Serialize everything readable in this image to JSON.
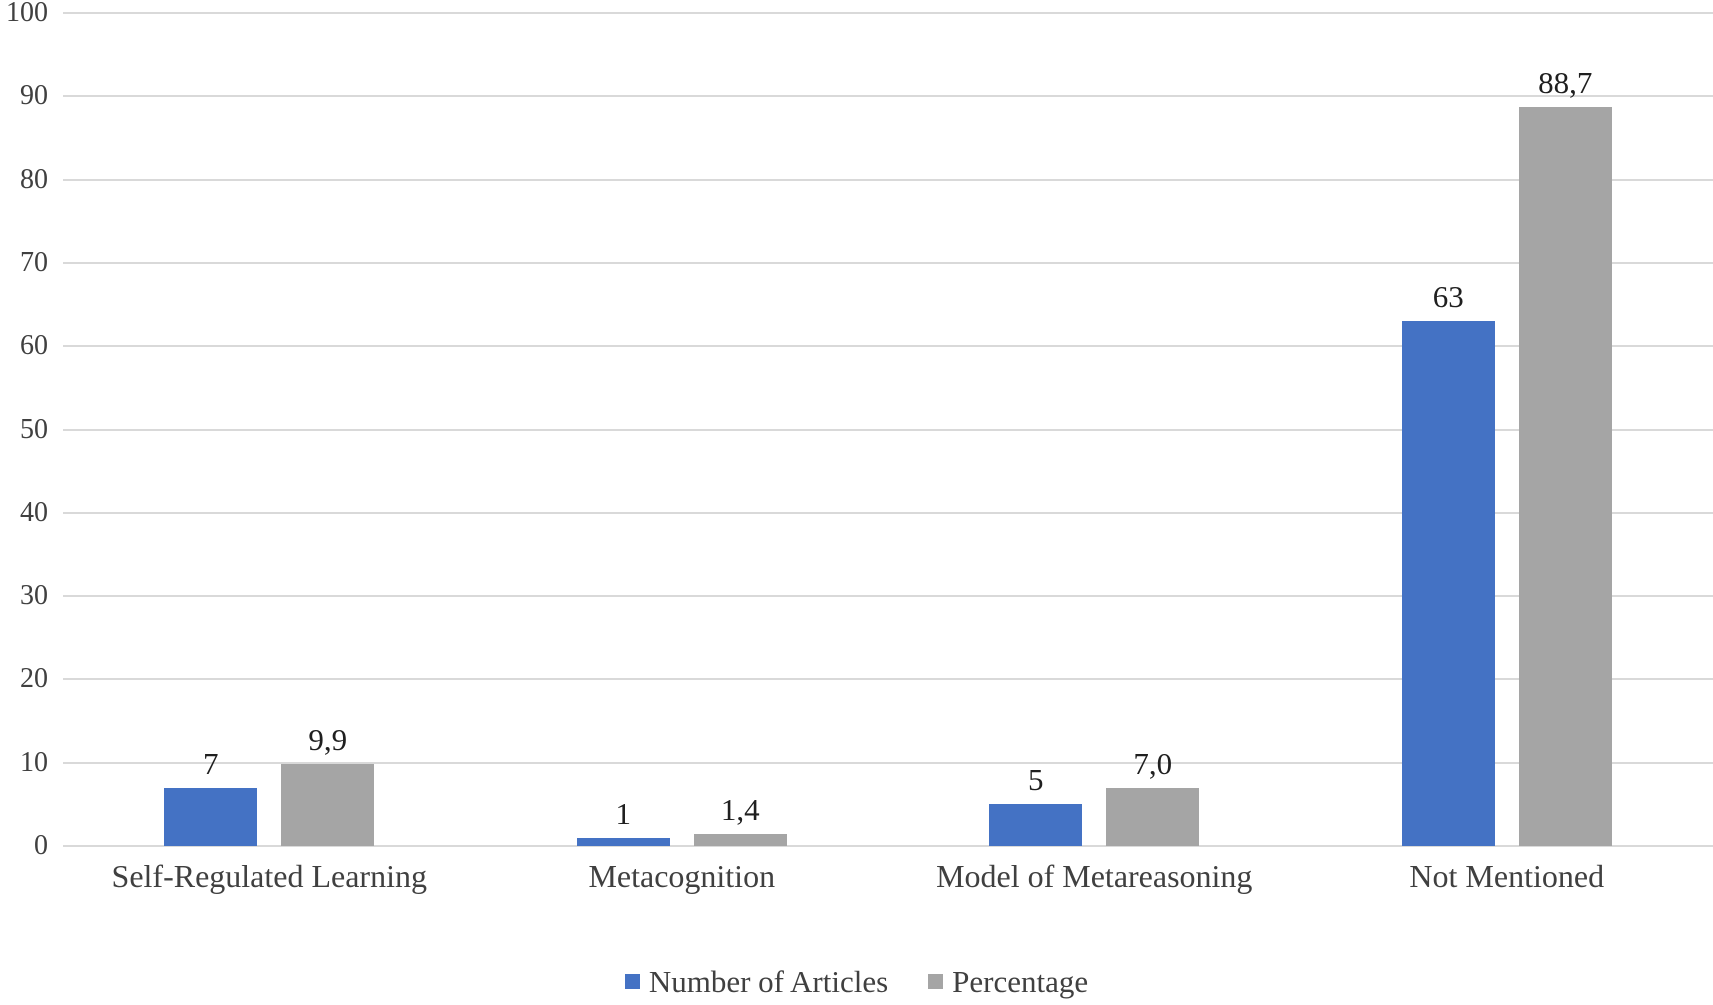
{
  "chart_data": {
    "type": "bar",
    "title": "",
    "xlabel": "",
    "ylabel": "",
    "categories": [
      "Self-Regulated Learning",
      "Metacognition",
      "Model of Metareasoning",
      "Not Mentioned"
    ],
    "series": [
      {
        "name": "Number of Articles",
        "color": "#4472C4",
        "values": [
          7,
          1,
          5,
          63
        ],
        "labels": [
          "7",
          "1",
          "5",
          "63"
        ]
      },
      {
        "name": "Percentage",
        "color": "#A5A5A5",
        "values": [
          9.9,
          1.4,
          7.0,
          88.7
        ],
        "labels": [
          "9,9",
          "1,4",
          "7,0",
          "88,7"
        ]
      }
    ],
    "ylim": [
      0,
      100
    ],
    "yticks": [
      0,
      10,
      20,
      30,
      40,
      50,
      60,
      70,
      80,
      90,
      100
    ],
    "grid": true,
    "gridline_color": "#D9D9D9",
    "axis_text_color": "#404040",
    "data_label_color": "#1F1F1F",
    "legend_position": "bottom"
  }
}
